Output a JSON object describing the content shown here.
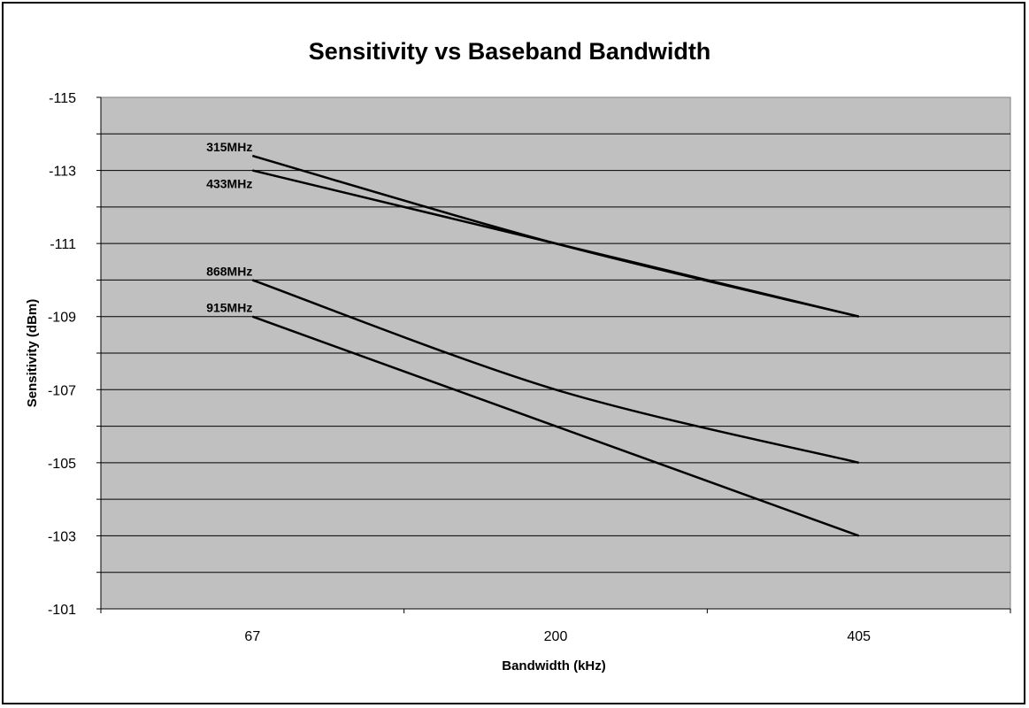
{
  "chart_data": {
    "type": "line",
    "title": "Sensitivity vs Baseband Bandwidth",
    "xlabel": "Bandwidth (kHz)",
    "ylabel": "Sensitivity (dBm)",
    "categories": [
      "67",
      "200",
      "405"
    ],
    "y_ticks": [
      "-115",
      "-113",
      "-111",
      "-109",
      "-107",
      "-105",
      "-103",
      "-101"
    ],
    "ylim": [
      -115,
      -101
    ],
    "y_axis_order": "-115 at top, -101 at bottom",
    "grid": "horizontal",
    "plot_background": "#c0c0c0",
    "line_color": "#000000",
    "series": [
      {
        "name": "315MHz",
        "values": [
          -113.4,
          -111,
          -109
        ]
      },
      {
        "name": "433MHz",
        "values": [
          -113,
          -111,
          -109
        ]
      },
      {
        "name": "868MHz",
        "values": [
          -110,
          -107,
          -105
        ]
      },
      {
        "name": "915MHz",
        "values": [
          -109,
          -106,
          -103
        ]
      }
    ]
  }
}
